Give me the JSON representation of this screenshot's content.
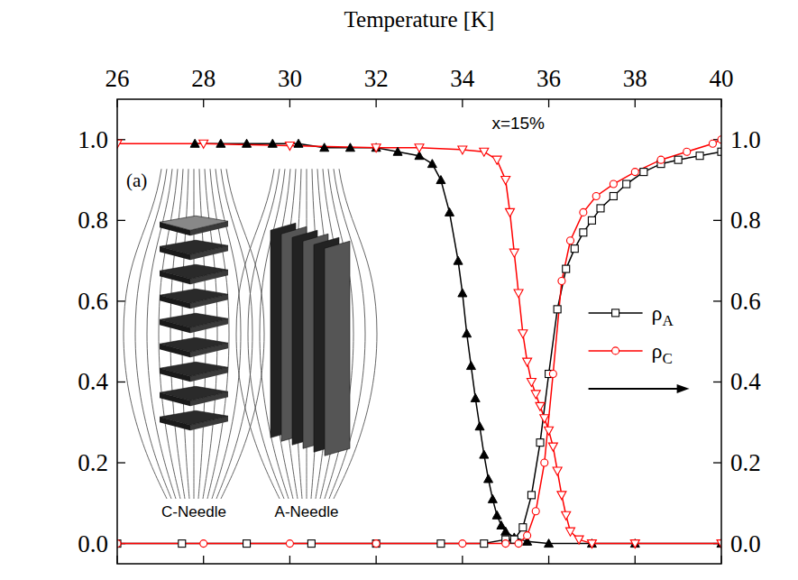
{
  "chart_data": {
    "type": "line",
    "x_label": "Temperature [K]",
    "annotations": [
      "x=15%",
      "(a)"
    ],
    "inset_labels": [
      "C-Needle",
      "A-Needle"
    ],
    "xlim": [
      26,
      40
    ],
    "xticks": [
      26,
      28,
      30,
      32,
      34,
      36,
      38,
      40
    ],
    "ylim": [
      -0.05,
      1.1
    ],
    "yticks": [
      {
        "value": 0,
        "label": "0.0"
      },
      {
        "value": 0.2,
        "label": "0.2"
      },
      {
        "value": 0.4,
        "label": "0.4"
      },
      {
        "value": 0.6,
        "label": "0.6"
      },
      {
        "value": 0.8,
        "label": "0.8"
      },
      {
        "value": 1.0,
        "label": "1.0"
      }
    ],
    "y2lim": [
      -0.05,
      1.1
    ],
    "y2ticks": [
      {
        "value": 0,
        "label": "0.0"
      },
      {
        "value": 0.2,
        "label": "0.2"
      },
      {
        "value": 0.4,
        "label": "0.4"
      },
      {
        "value": 0.6,
        "label": "0.6"
      },
      {
        "value": 0.8,
        "label": "0.8"
      },
      {
        "value": 1.0,
        "label": "1.0"
      }
    ],
    "grid": false,
    "legend": "right",
    "series": [
      {
        "color": "#000000",
        "marker": "filled-triangle",
        "line_style": "solid",
        "x": [
          27.8,
          28.4,
          29,
          29.6,
          30.2,
          30.8,
          31.4,
          32,
          32.5,
          33,
          33.3,
          33.5,
          33.7,
          33.9,
          34.0,
          34.1,
          34.2,
          34.3,
          34.4,
          34.5,
          34.6,
          34.7,
          34.8,
          34.9,
          35.0,
          35.2,
          35.5,
          36,
          37,
          38,
          40
        ],
        "values": [
          0.99,
          0.99,
          0.99,
          0.99,
          0.99,
          0.98,
          0.98,
          0.98,
          0.97,
          0.96,
          0.94,
          0.9,
          0.82,
          0.7,
          0.62,
          0.52,
          0.44,
          0.36,
          0.29,
          0.22,
          0.16,
          0.11,
          0.07,
          0.045,
          0.03,
          0.015,
          0.005,
          0,
          0,
          0,
          0
        ]
      },
      {
        "color": "#ff0000",
        "marker": "open-triangle-down",
        "line_style": "solid",
        "x": [
          26,
          28,
          30,
          32,
          33,
          34,
          34.5,
          34.8,
          35.0,
          35.1,
          35.2,
          35.3,
          35.4,
          35.5,
          35.6,
          35.7,
          35.8,
          35.9,
          36.0,
          36.1,
          36.2,
          36.3,
          36.4,
          36.5,
          36.7,
          37,
          38,
          40
        ],
        "values": [
          0.99,
          0.99,
          0.985,
          0.98,
          0.98,
          0.975,
          0.97,
          0.95,
          0.9,
          0.82,
          0.72,
          0.62,
          0.52,
          0.45,
          0.4,
          0.37,
          0.34,
          0.31,
          0.28,
          0.24,
          0.18,
          0.12,
          0.07,
          0.03,
          0.01,
          0,
          0,
          0
        ]
      },
      {
        "name": "ρA",
        "color": "#000000",
        "marker": "open-square",
        "line_style": "solid",
        "axis": "y2",
        "x": [
          26,
          27.5,
          29,
          30.5,
          32,
          33.5,
          34.5,
          35,
          35.2,
          35.4,
          35.6,
          35.8,
          36,
          36.2,
          36.4,
          36.6,
          36.8,
          37,
          37.2,
          37.5,
          37.8,
          38.2,
          38.6,
          39,
          39.5,
          40
        ],
        "values": [
          0,
          0,
          0,
          0,
          0,
          0,
          0,
          0.01,
          0.01,
          0.04,
          0.12,
          0.25,
          0.42,
          0.58,
          0.68,
          0.73,
          0.77,
          0.8,
          0.83,
          0.86,
          0.89,
          0.92,
          0.94,
          0.95,
          0.96,
          0.97
        ]
      },
      {
        "name": "ρC",
        "color": "#ff0000",
        "marker": "open-circle",
        "line_style": "solid",
        "axis": "y2",
        "x": [
          26,
          28,
          30,
          32,
          34,
          35,
          35.3,
          35.5,
          35.7,
          35.9,
          36.1,
          36.3,
          36.5,
          36.8,
          37.1,
          37.5,
          38,
          38.6,
          39.2,
          39.8,
          40
        ],
        "values": [
          0,
          0,
          0,
          0,
          0,
          0,
          0,
          0.02,
          0.08,
          0.2,
          0.42,
          0.65,
          0.75,
          0.82,
          0.86,
          0.89,
          0.92,
          0.95,
          0.97,
          0.99,
          1.0
        ]
      }
    ]
  }
}
